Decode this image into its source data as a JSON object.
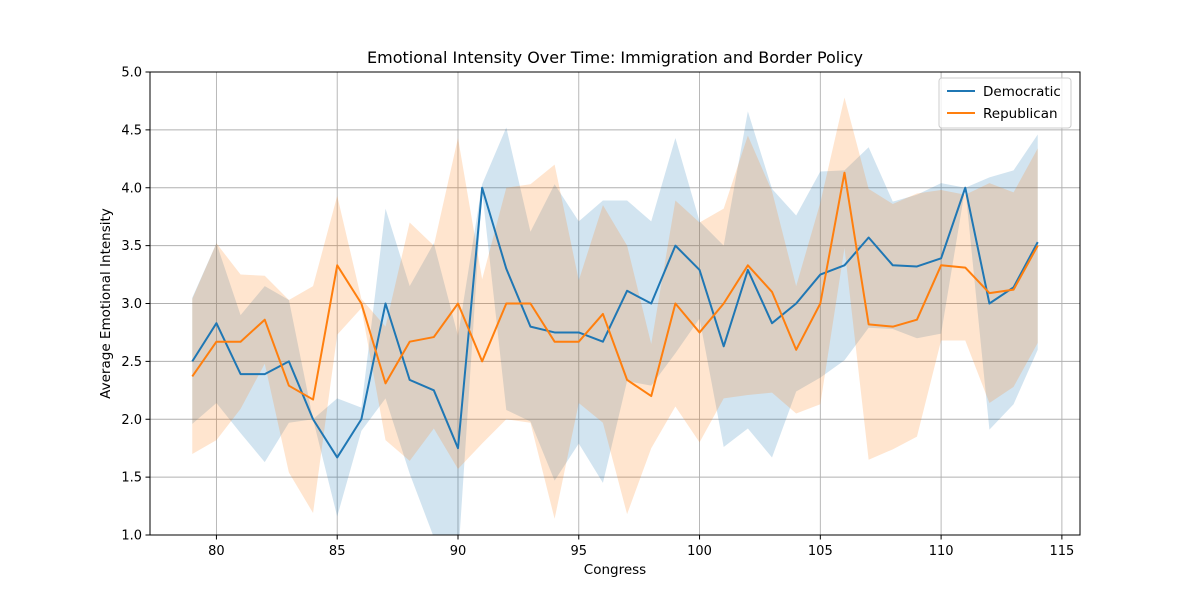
{
  "chart_data": {
    "type": "line",
    "title": "Emotional Intensity Over Time: Immigration and Border Policy",
    "xlabel": "Congress",
    "ylabel": "Average Emotional Intensity",
    "xlim": [
      77.25,
      115.75
    ],
    "ylim": [
      1.0,
      5.0
    ],
    "xticks": [
      80,
      85,
      90,
      95,
      100,
      105,
      110,
      115
    ],
    "yticks": [
      1.0,
      1.5,
      2.0,
      2.5,
      3.0,
      3.5,
      4.0,
      4.5,
      5.0
    ],
    "xtick_labels": [
      "80",
      "85",
      "90",
      "95",
      "100",
      "105",
      "110",
      "115"
    ],
    "ytick_labels": [
      "1.0",
      "1.5",
      "2.0",
      "2.5",
      "3.0",
      "3.5",
      "4.0",
      "4.5",
      "5.0"
    ],
    "grid": true,
    "legend_position": "top-right",
    "x": [
      79,
      80,
      81,
      82,
      83,
      84,
      85,
      86,
      87,
      88,
      89,
      90,
      91,
      92,
      93,
      94,
      95,
      96,
      97,
      98,
      99,
      100,
      101,
      102,
      103,
      104,
      105,
      106,
      107,
      108,
      109,
      110,
      111,
      112,
      113,
      114
    ],
    "series": [
      {
        "name": "Democratic",
        "color": "#1f77b4",
        "values": [
          2.5,
          2.83,
          2.39,
          2.39,
          2.5,
          2.0,
          1.67,
          2.0,
          3.0,
          2.34,
          2.25,
          1.75,
          4.0,
          3.3,
          2.8,
          2.75,
          2.75,
          2.67,
          3.11,
          3.0,
          3.5,
          3.29,
          2.63,
          3.29,
          2.83,
          3.0,
          3.25,
          3.33,
          3.57,
          3.33,
          3.32,
          3.39,
          4.0,
          3.0,
          3.14,
          3.53
        ],
        "upper": [
          3.05,
          3.52,
          2.9,
          3.15,
          3.03,
          2.0,
          2.18,
          2.1,
          3.82,
          3.15,
          3.52,
          2.72,
          4.03,
          4.52,
          3.62,
          4.03,
          3.71,
          3.89,
          3.89,
          3.71,
          4.43,
          3.71,
          3.5,
          4.66,
          3.99,
          3.76,
          4.14,
          4.15,
          4.35,
          3.88,
          3.94,
          4.04,
          4.0,
          4.09,
          4.15,
          4.46
        ],
        "lower": [
          1.96,
          2.14,
          1.88,
          1.63,
          1.97,
          2.0,
          1.16,
          1.9,
          2.18,
          1.53,
          0.98,
          0.78,
          3.97,
          2.08,
          1.98,
          1.47,
          1.79,
          1.45,
          2.33,
          2.29,
          2.57,
          2.87,
          1.76,
          1.92,
          1.67,
          2.24,
          2.36,
          2.51,
          2.79,
          2.78,
          2.7,
          2.74,
          4.0,
          1.91,
          2.13,
          2.6
        ]
      },
      {
        "name": "Republican",
        "color": "#ff7f0e",
        "values": [
          2.37,
          2.67,
          2.67,
          2.86,
          2.29,
          2.17,
          3.33,
          3.0,
          2.31,
          2.67,
          2.71,
          3.0,
          2.5,
          3.0,
          3.0,
          2.67,
          2.67,
          2.91,
          2.34,
          2.2,
          3.0,
          2.75,
          3.0,
          3.33,
          3.1,
          2.6,
          3.0,
          4.13,
          2.82,
          2.8,
          2.86,
          3.33,
          3.31,
          3.09,
          3.12,
          3.5
        ],
        "upper": [
          3.04,
          3.52,
          3.25,
          3.24,
          3.03,
          3.15,
          3.93,
          3.04,
          2.8,
          3.7,
          3.5,
          4.43,
          3.21,
          4.0,
          4.03,
          4.2,
          3.2,
          3.85,
          3.5,
          2.65,
          3.89,
          3.7,
          3.82,
          4.45,
          3.97,
          3.15,
          3.87,
          4.78,
          3.99,
          3.86,
          3.95,
          3.98,
          3.94,
          4.04,
          3.96,
          4.34
        ],
        "lower": [
          1.7,
          1.82,
          2.09,
          2.48,
          1.54,
          1.19,
          2.73,
          2.96,
          1.82,
          1.64,
          1.92,
          1.57,
          1.79,
          2.0,
          1.97,
          1.14,
          2.14,
          1.97,
          1.18,
          1.75,
          2.11,
          1.8,
          2.18,
          2.21,
          2.23,
          2.05,
          2.13,
          3.48,
          1.65,
          1.74,
          1.85,
          2.68,
          2.68,
          2.14,
          2.28,
          2.66
        ]
      }
    ]
  }
}
